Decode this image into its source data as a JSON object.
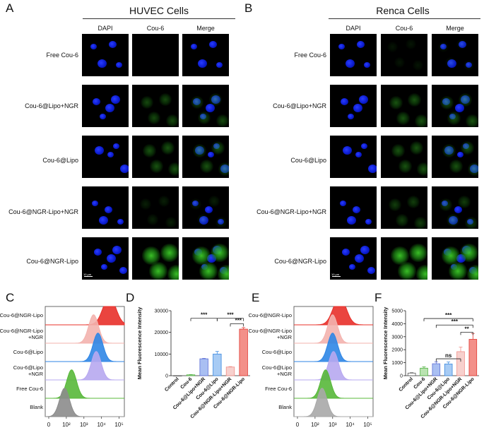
{
  "panels": {
    "A": "A",
    "B": "B",
    "C": "C",
    "D": "D",
    "E": "E",
    "F": "F"
  },
  "huvec": {
    "title": "HUVEC Cells",
    "columns": [
      "DAPI",
      "Cou-6",
      "Merge"
    ],
    "rows": [
      "Free Cou-6",
      "Cou-6@Lipo+NGR",
      "Cou-6@Lipo",
      "Cou-6@NGR-Lipo+NGR",
      "Cou-6@NGR-Lipo"
    ],
    "green_level": [
      0.05,
      0.35,
      0.4,
      0.15,
      1.0
    ],
    "scale_label": "10 μm"
  },
  "renca": {
    "title": "Renca Cells",
    "columns": [
      "DAPI",
      "Cou-6",
      "Merge"
    ],
    "rows": [
      "Free Cou-6",
      "Cou-6@Lipo+NGR",
      "Cou-6@Lipo",
      "Cou-6@NGR-Lipo+NGR",
      "Cou-6@NGR-Lipo"
    ],
    "green_level": [
      0.1,
      0.4,
      0.4,
      0.3,
      1.0
    ],
    "scale_label": "10 μm"
  },
  "flow_C": {
    "labels": [
      {
        "line1": "Cou-6@NGR-Lipo",
        "line2": ""
      },
      {
        "line1": "Cou-6@NGR-Lipo",
        "line2": "+NGR"
      },
      {
        "line1": "Cou-6@Lipo",
        "line2": ""
      },
      {
        "line1": "Cou-6@Lipo",
        "line2": "+NGR"
      },
      {
        "line1": "Free Cou-6",
        "line2": ""
      },
      {
        "line1": "Blank",
        "line2": ""
      }
    ],
    "colors": [
      "#e8302a",
      "#f3b3ae",
      "#2f86e6",
      "#b7a8f0",
      "#58b83a",
      "#8c8c8c"
    ],
    "peaks_log": [
      4.45,
      3.55,
      3.8,
      3.7,
      2.3,
      1.9
    ],
    "xticks": [
      "0",
      "10²",
      "10³",
      "10⁴",
      "10⁵"
    ]
  },
  "flow_E": {
    "labels": [
      {
        "line1": "Cou-6@NGR-Lipo",
        "line2": ""
      },
      {
        "line1": "Cou-6@NGR-Lipo",
        "line2": "+NGR"
      },
      {
        "line1": "Cou-6@Lipo",
        "line2": ""
      },
      {
        "line1": "Cou-6@Lipo",
        "line2": "+NGR"
      },
      {
        "line1": "Free Cou-6",
        "line2": ""
      },
      {
        "line1": "Blank",
        "line2": ""
      }
    ],
    "colors": [
      "#e8302a",
      "#f3b3ae",
      "#2f86e6",
      "#b7a8f0",
      "#58b83a",
      "#a8a8a8"
    ],
    "peaks_log": [
      3.4,
      3.0,
      3.0,
      3.05,
      2.6,
      2.4
    ],
    "xticks": [
      "0",
      "10²",
      "10³",
      "10⁴",
      "10⁵"
    ]
  },
  "chart_data": [
    {
      "type": "bar",
      "panel": "D",
      "ylabel": "Mean Fluorescence Intensity",
      "categories": [
        "Control",
        "Cou-6",
        "Cou-6@Lipo+NGR",
        "Cou-6@Lipo",
        "Cou-6@NGR-Lipo+NGR",
        "Cou-6@NGR-Lipo"
      ],
      "values": [
        0,
        400,
        7800,
        10000,
        4000,
        21500
      ],
      "errors": [
        0,
        100,
        200,
        1200,
        200,
        700
      ],
      "ylim": [
        0,
        30000
      ],
      "yticks": [
        "0",
        "10000",
        "20000",
        "30000"
      ],
      "colors": [
        "#ffffff",
        "#b9e3b0",
        "#a9bff2",
        "#a7cbf4",
        "#f7d0cd",
        "#f39089"
      ],
      "edge_colors": [
        "#555555",
        "#4fb040",
        "#5d6fd6",
        "#3c8ae0",
        "#f08f88",
        "#e23a33"
      ],
      "significance": [
        "***",
        "***",
        "***"
      ]
    },
    {
      "type": "bar",
      "panel": "F",
      "ylabel": "Mean Fluorescence Intensity",
      "categories": [
        "Control",
        "Cou-6",
        "Cou-6@Lipo+NGR",
        "Cou-6@Lipo",
        "Cou-6@NGR-Lipo+NGR",
        "Cou-6@NGR-Lipo"
      ],
      "values": [
        200,
        580,
        920,
        900,
        1850,
        2800
      ],
      "errors": [
        30,
        100,
        150,
        150,
        350,
        450
      ],
      "ylim": [
        0,
        5000
      ],
      "yticks": [
        "0",
        "1000",
        "2000",
        "3000",
        "4000",
        "5000"
      ],
      "colors": [
        "#ffffff",
        "#b9e3b0",
        "#a9bff2",
        "#a7cbf4",
        "#f7d0cd",
        "#f39089"
      ],
      "edge_colors": [
        "#555555",
        "#4fb040",
        "#5d6fd6",
        "#3c8ae0",
        "#f08f88",
        "#e23a33"
      ],
      "significance": [
        "***",
        "***",
        "**",
        "ns"
      ]
    }
  ]
}
